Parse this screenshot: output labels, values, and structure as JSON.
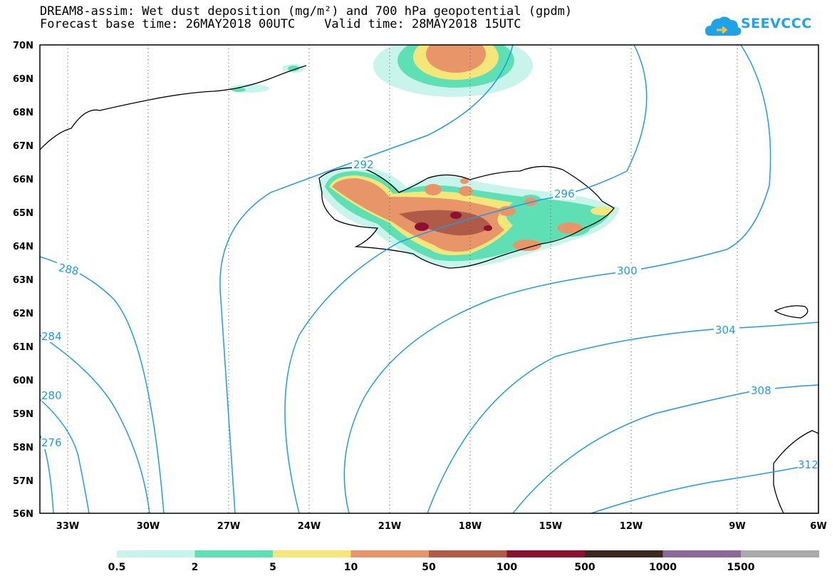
{
  "title": {
    "line1": "DREAM8-assim: Wet dust deposition (mg/m²) and 700 hPa geopotential (gpdm)",
    "line2": "Forecast base time: 26MAY2018 00UTC    Valid time: 28MAY2018 15UTC"
  },
  "logo": {
    "text": "SEEVCCC",
    "icon": "cloud-icon",
    "color": "#1fa3e6"
  },
  "map": {
    "lat_labels": [
      "70N",
      "69N",
      "68N",
      "67N",
      "66N",
      "65N",
      "64N",
      "63N",
      "62N",
      "61N",
      "60N",
      "59N",
      "58N",
      "57N",
      "56N"
    ],
    "lon_labels": [
      "33W",
      "30W",
      "27W",
      "24W",
      "21W",
      "18W",
      "15W",
      "12W",
      "9W",
      "6W"
    ],
    "contour_color": "#1e9be8",
    "contour_labels": [
      "292",
      "296",
      "288",
      "300",
      "304",
      "308",
      "284",
      "280",
      "276",
      "312"
    ]
  },
  "legend": {
    "colors": [
      "#c8f4ec",
      "#5fe0b4",
      "#f5e67a",
      "#e8956a",
      "#b05a48",
      "#8c1030",
      "#3a2820",
      "#8c6898",
      "#aaaaaa"
    ],
    "labels": [
      "0.5",
      "2",
      "5",
      "10",
      "50",
      "100",
      "500",
      "1000",
      "1500"
    ]
  }
}
